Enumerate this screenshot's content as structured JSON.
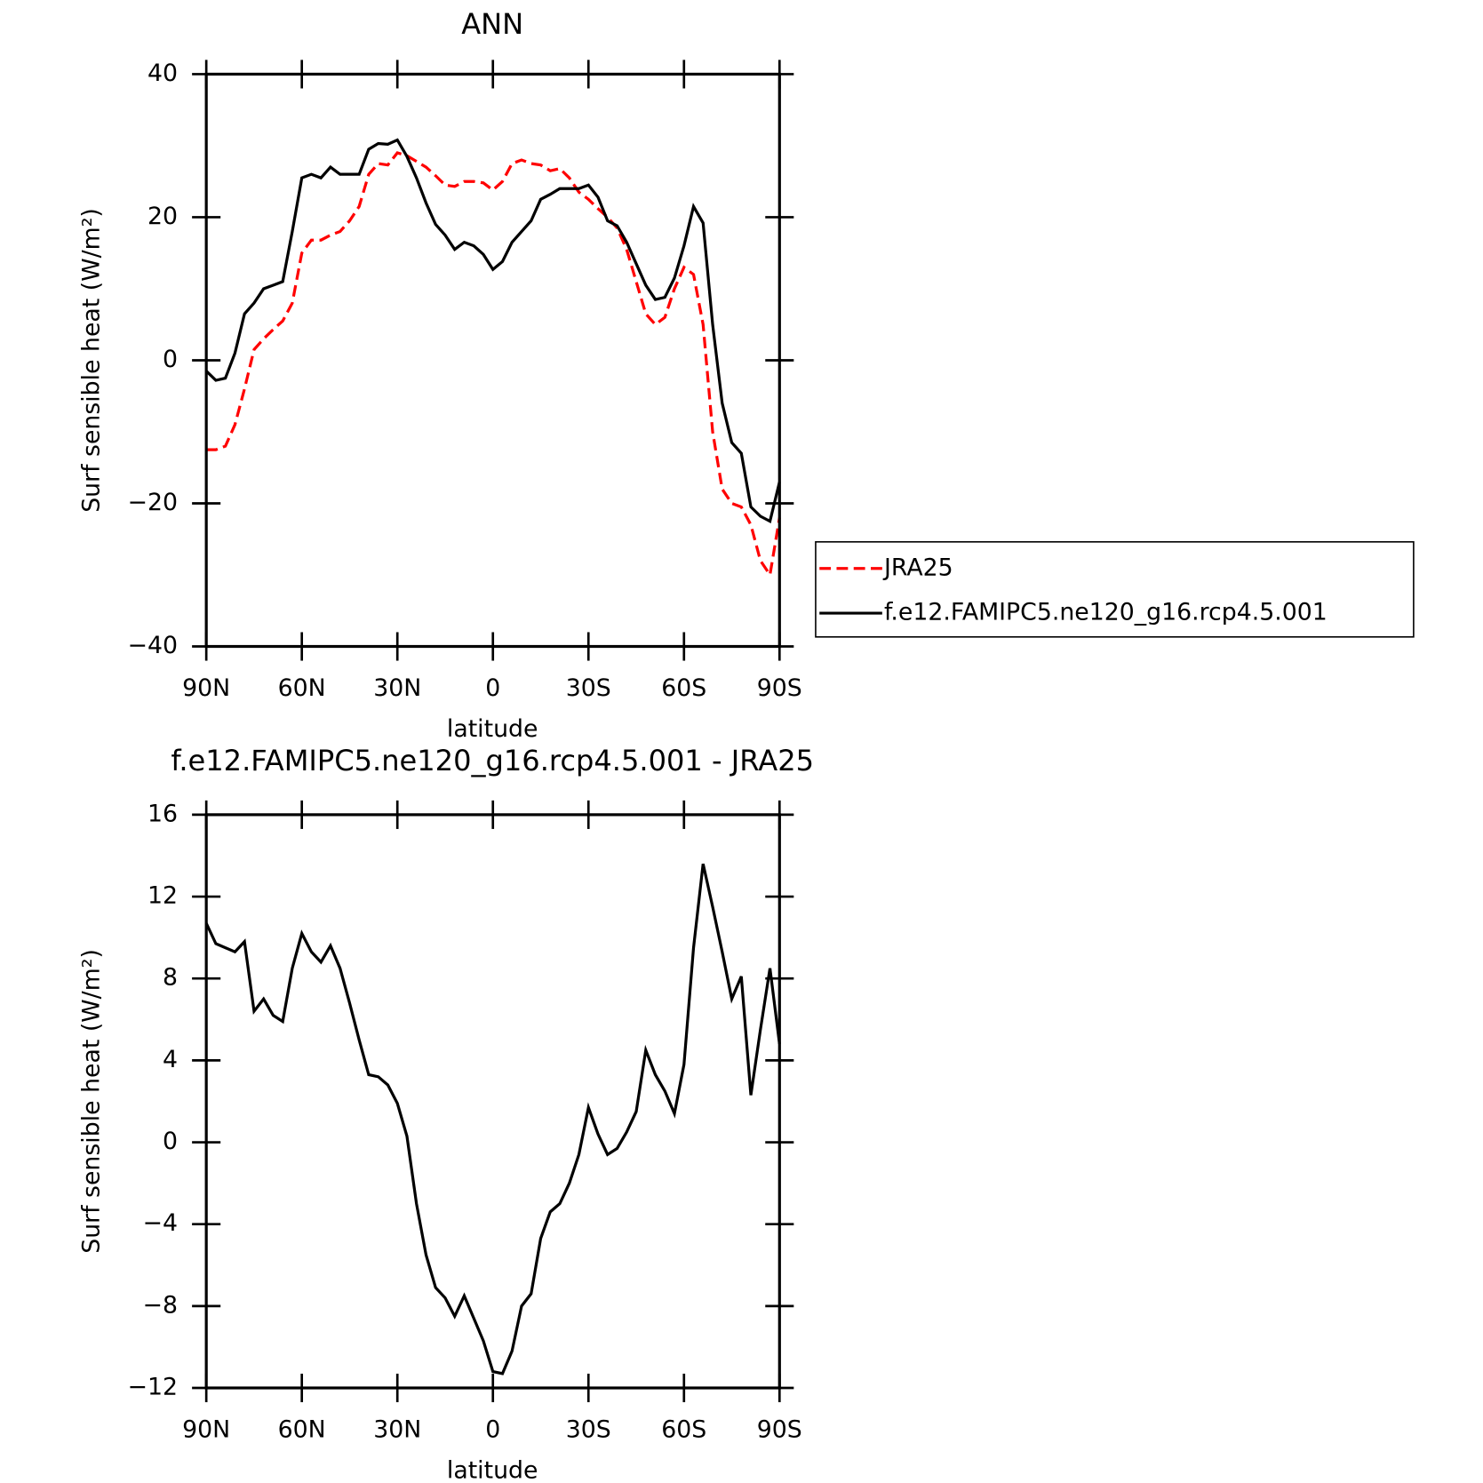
{
  "chart_data": [
    {
      "type": "line",
      "title": "ANN",
      "xlabel": "latitude",
      "ylabel": "Surf sensible heat (W/m²)",
      "x": [
        90,
        87,
        84,
        81,
        78,
        75,
        72,
        69,
        66,
        63,
        60,
        57,
        54,
        51,
        48,
        45,
        42,
        39,
        36,
        33,
        30,
        27,
        24,
        21,
        18,
        15,
        12,
        9,
        6,
        3,
        0,
        -3,
        -6,
        -9,
        -12,
        -15,
        -18,
        -21,
        -24,
        -27,
        -30,
        -33,
        -36,
        -39,
        -42,
        -45,
        -48,
        -51,
        -54,
        -57,
        -60,
        -63,
        -66,
        -69,
        -72,
        -75,
        -78,
        -81,
        -84,
        -87,
        -90
      ],
      "series": [
        {
          "name": "JRA25",
          "color": "#ff0000",
          "dash": true,
          "values": [
            -12.5,
            -12.5,
            -12,
            -9,
            -4,
            1.5,
            3,
            4.3,
            5.5,
            8,
            15,
            16.8,
            16.8,
            17.5,
            18,
            19.5,
            21.5,
            26,
            27.5,
            27.3,
            29,
            28.6,
            27.8,
            27,
            25.8,
            24.5,
            24.3,
            25,
            25,
            24.8,
            23.8,
            25,
            27.5,
            28,
            27.5,
            27.3,
            26.5,
            26.8,
            25.5,
            23.5,
            22.5,
            21.2,
            20,
            18.5,
            15.5,
            11,
            6.5,
            5,
            6,
            10,
            13,
            12,
            5,
            -10,
            -18,
            -20,
            -20.5,
            -23,
            -28,
            -30,
            -22
          ]
        },
        {
          "name": "f.e12.FAMIPC5.ne120_g16.rcp4.5.001",
          "color": "#000000",
          "dash": false,
          "values": [
            -1.5,
            -2.8,
            -2.5,
            1,
            6.5,
            8,
            10,
            10.5,
            11,
            18,
            25.5,
            26,
            25.5,
            27,
            26,
            26,
            26,
            29.5,
            30.3,
            30.2,
            30.8,
            28.5,
            25.5,
            22,
            19,
            17.5,
            15.5,
            16.5,
            16,
            14.8,
            12.7,
            13.8,
            16.5,
            18,
            19.5,
            22.5,
            23.2,
            24,
            24,
            24,
            24.5,
            22.8,
            19.5,
            18.8,
            16.5,
            13.5,
            10.5,
            8.5,
            8.8,
            11.5,
            16,
            21.5,
            19.2,
            5,
            -6,
            -11.5,
            -13,
            -20.5,
            -21.8,
            -22.5,
            -17
          ]
        }
      ],
      "xlim": [
        90,
        -90
      ],
      "xticks": [
        {
          "value": 90,
          "label": "90N"
        },
        {
          "value": 60,
          "label": "60N"
        },
        {
          "value": 30,
          "label": "30N"
        },
        0,
        {
          "value": -30,
          "label": "30S"
        },
        {
          "value": -60,
          "label": "60S"
        },
        {
          "value": -90,
          "label": "90S"
        }
      ],
      "ylim": [
        -40,
        40
      ],
      "yticks": [
        {
          "value": -40,
          "label": "−40"
        },
        {
          "value": -20,
          "label": "−20"
        },
        0,
        20,
        40
      ],
      "legend": "right"
    },
    {
      "type": "line",
      "title": "f.e12.FAMIPC5.ne120_g16.rcp4.5.001 - JRA25",
      "xlabel": "latitude",
      "ylabel": "Surf sensible heat (W/m²)",
      "x": [
        90,
        87,
        84,
        81,
        78,
        75,
        72,
        69,
        66,
        63,
        60,
        57,
        54,
        51,
        48,
        45,
        42,
        39,
        36,
        33,
        30,
        27,
        24,
        21,
        18,
        15,
        12,
        9,
        6,
        3,
        0,
        -3,
        -6,
        -9,
        -12,
        -15,
        -18,
        -21,
        -24,
        -27,
        -30,
        -33,
        -36,
        -39,
        -42,
        -45,
        -48,
        -51,
        -54,
        -57,
        -60,
        -63,
        -66,
        -69,
        -72,
        -75,
        -78,
        -81,
        -84,
        -87,
        -90
      ],
      "series": [
        {
          "color": "#000000",
          "dash": false,
          "values": [
            10.7,
            9.7,
            9.5,
            9.3,
            9.8,
            6.4,
            7.0,
            6.2,
            5.9,
            8.5,
            10.2,
            9.3,
            8.8,
            9.6,
            8.5,
            6.8,
            5.0,
            3.3,
            3.2,
            2.8,
            1.9,
            0.3,
            -3.0,
            -5.5,
            -7.1,
            -7.6,
            -8.5,
            -7.5,
            -8.6,
            -9.7,
            -11.2,
            -11.3,
            -10.2,
            -8.0,
            -7.4,
            -4.7,
            -3.4,
            -3.0,
            -2.0,
            -0.6,
            1.7,
            0.4,
            -0.6,
            -0.3,
            0.5,
            1.5,
            4.5,
            3.3,
            2.5,
            1.4,
            3.8,
            9.5,
            13.6,
            11.5,
            9.3,
            7.0,
            8.1,
            2.3,
            5.5,
            8.5,
            4.8
          ]
        }
      ],
      "xlim": [
        90,
        -90
      ],
      "xticks": [
        {
          "value": 90,
          "label": "90N"
        },
        {
          "value": 60,
          "label": "60N"
        },
        {
          "value": 30,
          "label": "30N"
        },
        0,
        {
          "value": -30,
          "label": "30S"
        },
        {
          "value": -60,
          "label": "60S"
        },
        {
          "value": -90,
          "label": "90S"
        }
      ],
      "ylim": [
        -12,
        16
      ],
      "yticks": [
        {
          "value": -12,
          "label": "−12"
        },
        {
          "value": -8,
          "label": "−8"
        },
        {
          "value": -4,
          "label": "−4"
        },
        0,
        4,
        8,
        12,
        16
      ]
    }
  ]
}
